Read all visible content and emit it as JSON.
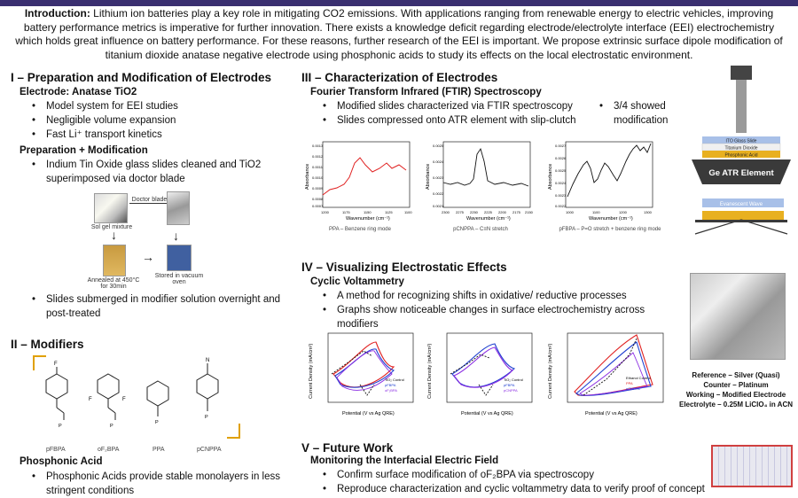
{
  "intro": {
    "label": "Introduction:",
    "text": " Lithium ion batteries play a key role in mitigating CO2 emissions. With applications ranging from renewable energy to electric vehicles, improving battery performance metrics is imperative for further innovation. There exists a knowledge deficit regarding electrode/electrolyte interface (EEI) electrochemistry which holds great influence on battery performance. For these reasons, further research of the EEI is important. We propose extrinsic surface dipole modification of titanium dioxide anatase negative electrode using phosphonic acids to study its effects on the local electrostatic environment."
  },
  "s1": {
    "title": "I – Preparation and Modification of Electrodes",
    "sub1": "Electrode: Anatase TiO2",
    "b1": [
      "Model system for EEI studies",
      "Negligible volume expansion",
      "Fast Li⁺ transport kinetics"
    ],
    "sub2": "Preparation + Modification",
    "b2": [
      "Indium Tin Oxide glass slides cleaned and TiO2 superimposed via doctor blade"
    ],
    "b3": [
      "Slides submerged in modifier solution overnight and post-treated"
    ],
    "fig": {
      "doctor": "Doctor blade",
      "solgel": "Sol gel mixture",
      "anneal": "Annealed at 450°C for 30min",
      "stored": "Stored in vacuum oven"
    }
  },
  "s2": {
    "title": "II – Modifiers",
    "mols": [
      "pFBPA",
      "oF₂BPA",
      "PPA",
      "pCNPPA"
    ],
    "sub": "Phosphonic Acid",
    "b": [
      "Phosphonic Acids provide stable monolayers in less stringent conditions"
    ]
  },
  "s3": {
    "title": "III – Characterization of Electrodes",
    "sub": "Fourier Transform Infrared (FTIR) Spectroscopy",
    "b": [
      "Modified slides characterized via FTIR spectroscopy",
      "Slides compressed onto ATR element with slip-clutch"
    ],
    "b2": [
      "3/4 showed modification"
    ],
    "plots": [
      {
        "ylabel": "Absorbance",
        "xlabel": "Wavenumber (cm⁻¹)",
        "cap": "PPA – Benzene ring mode",
        "xt": [
          "1200",
          "1175",
          "1150",
          "1125",
          "1100"
        ],
        "yt": [
          "0.0013",
          "0.0012",
          "0.0011",
          "0.0010",
          "0.0009",
          "0.0008",
          "0.0007"
        ]
      },
      {
        "ylabel": "Absorbance",
        "xlabel": "Wavenumber (cm⁻¹)",
        "cap": "pCNPPA – C≡N stretch",
        "xt": [
          "2300",
          "2275",
          "2250",
          "2225",
          "2200",
          "2175",
          "2150"
        ],
        "yt": [
          "0.0025",
          "0.0024",
          "0.0023",
          "0.0022",
          "0.0021"
        ]
      },
      {
        "ylabel": "Absorbance",
        "xlabel": "Wavenumber (cm⁻¹)",
        "cap": "pFBPA – P=O stretch + benzene ring mode",
        "xt": [
          "1000",
          "1100",
          "1200",
          "1300"
        ],
        "yt": [
          "0.0027",
          "0.0026",
          "0.0025",
          "0.0024",
          "0.0023",
          "0.0022"
        ]
      }
    ],
    "atr": {
      "l1": "ITO Glass Slide",
      "l2": "Titanium Dioxide",
      "l3": "Phosphonic Acid",
      "el": "Ge ATR Element",
      "wave": "Evanescent Wave"
    }
  },
  "s4": {
    "title": "IV – Visualizing Electrostatic Effects",
    "sub": "Cyclic Voltammetry",
    "b": [
      "A method for recognizing shifts in oxidative/ reductive processes",
      "Graphs show noticeable changes in surface electrochemistry across modifiers"
    ],
    "ylabel": "Current Density (mA/cm²)",
    "xlabel": "Potential (V vs Ag QRE)",
    "legends": [
      [
        "TiO₂ Control",
        "pFBPA",
        "oF₂BPA"
      ],
      [
        "TiO₂ Control",
        "pFBPA",
        "pCNPPA"
      ],
      [
        "Ethanol Control",
        "PPA",
        "pCNPPA"
      ]
    ],
    "ref": [
      "Reference – Silver (Quasi)",
      "Counter – Platinum",
      "Working – Modified Electrode",
      "Electrolyte – 0.25M LiClO₄ in ACN"
    ]
  },
  "s5": {
    "title": "V – Future Work",
    "sub": "Monitoring the Interfacial Electric Field",
    "b": [
      "Confirm surface modification of oF₂BPA via spectroscopy",
      "Reproduce characterization and cyclic voltammetry data to verify proof of concept"
    ]
  },
  "colors": {
    "band": "#3a2f70",
    "red": "#e02020",
    "blue": "#2040d0",
    "purple": "#8a2be2",
    "gold": "#e0a000"
  }
}
